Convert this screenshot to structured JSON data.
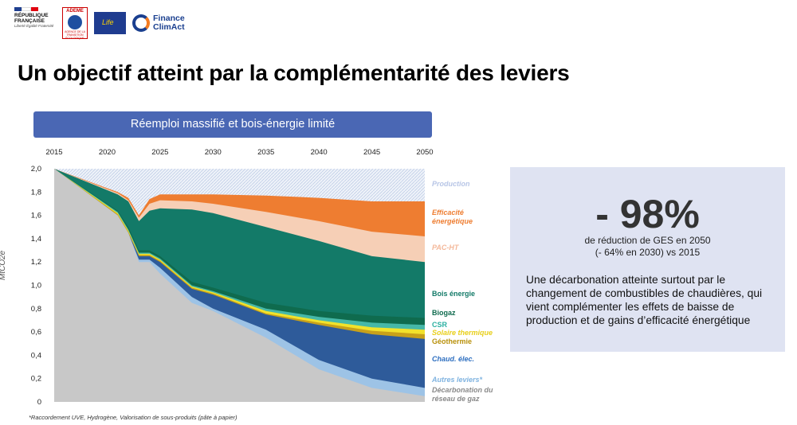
{
  "header": {
    "logos": {
      "rf": "RÉPUBLIQUE FRANÇAISE",
      "rf_motto": "Liberté Égalité Fraternité",
      "ademe": "ADEME",
      "ademe_sub": "AGENCE DE LA TRANSITION ÉCOLOGIQUE",
      "eu": "Life",
      "fca": "Finance ClimAct"
    },
    "title": "Un objectif atteint par la complémentarité des leviers"
  },
  "banner": "Réemploi massifié et bois-énergie limité",
  "footnote": "*Raccordement UVE, Hydrogène, Valorisation de sous-produits (pâte à papier)",
  "panel": {
    "headline": "- 98%",
    "subline1": "de réduction de GES en 2050",
    "subline2": "(- 64% en 2030) vs 2015",
    "description": "Une décarbonation atteinte surtout par le changement de combustibles de chaudières, qui vient complémenter les effets de baisse de production et de gains d’efficacité énergétique"
  },
  "chart_data": {
    "type": "area",
    "title": "Réemploi massifié et bois-énergie limité",
    "xlabel": "",
    "ylabel": "MtCO2e",
    "x_ticks": [
      "2015",
      "2020",
      "2025",
      "2030",
      "2035",
      "2040",
      "2045",
      "2050"
    ],
    "y_ticks": [
      "2,0",
      "1,8",
      "1,6",
      "1,4",
      "1,2",
      "1,0",
      "0,8",
      "0,6",
      "0,4",
      "0,2",
      "0"
    ],
    "xlim": [
      2015,
      2050
    ],
    "ylim": [
      0,
      2.0
    ],
    "x": [
      2015,
      2021,
      2022,
      2023,
      2024,
      2025,
      2028,
      2030,
      2035,
      2040,
      2045,
      2050
    ],
    "series": [
      {
        "name": "Décarbonation du réseau de gaz",
        "color": "#c8c8c8",
        "values": [
          2.0,
          1.6,
          1.45,
          1.2,
          1.2,
          1.1,
          0.85,
          0.78,
          0.55,
          0.28,
          0.12,
          0.05
        ]
      },
      {
        "name": "Autres leviers*",
        "color": "#9dc3e6",
        "values": [
          2.0,
          1.6,
          1.45,
          1.22,
          1.22,
          1.15,
          0.9,
          0.8,
          0.62,
          0.36,
          0.2,
          0.12
        ]
      },
      {
        "name": "Chaud. élec.",
        "color": "#2e5b9a",
        "values": [
          2.0,
          1.6,
          1.45,
          1.25,
          1.25,
          1.2,
          0.97,
          0.92,
          0.75,
          0.66,
          0.58,
          0.54
        ]
      },
      {
        "name": "Géothermie",
        "color": "#c8a11a",
        "values": [
          2.0,
          1.61,
          1.46,
          1.26,
          1.26,
          1.21,
          0.98,
          0.93,
          0.76,
          0.68,
          0.61,
          0.58
        ]
      },
      {
        "name": "Solaire thermique",
        "color": "#f2e22b",
        "values": [
          2.0,
          1.62,
          1.47,
          1.27,
          1.27,
          1.22,
          0.99,
          0.94,
          0.78,
          0.7,
          0.64,
          0.62
        ]
      },
      {
        "name": "CSR",
        "color": "#46b8a8",
        "values": [
          2.0,
          1.63,
          1.48,
          1.28,
          1.28,
          1.23,
          1.0,
          0.95,
          0.8,
          0.73,
          0.68,
          0.66
        ]
      },
      {
        "name": "Biogaz",
        "color": "#0f6b4e",
        "values": [
          2.0,
          1.64,
          1.5,
          1.3,
          1.3,
          1.25,
          1.03,
          0.98,
          0.85,
          0.78,
          0.74,
          0.72
        ]
      },
      {
        "name": "Bois énergie",
        "color": "#137a68",
        "values": [
          2.0,
          1.78,
          1.72,
          1.55,
          1.64,
          1.66,
          1.65,
          1.62,
          1.5,
          1.38,
          1.25,
          1.2
        ]
      },
      {
        "name": "PAC-HT",
        "color": "#f6cfb6",
        "values": [
          2.0,
          1.79,
          1.73,
          1.58,
          1.7,
          1.73,
          1.72,
          1.7,
          1.63,
          1.55,
          1.46,
          1.42
        ]
      },
      {
        "name": "Efficacité énergétique",
        "color": "#ee7d31",
        "values": [
          2.0,
          1.8,
          1.75,
          1.6,
          1.74,
          1.78,
          1.78,
          1.78,
          1.77,
          1.75,
          1.72,
          1.72
        ]
      },
      {
        "name": "Production",
        "color": "#e8edf6",
        "values": [
          2.0,
          2.0,
          2.0,
          2.0,
          2.0,
          2.0,
          2.0,
          2.0,
          2.0,
          2.0,
          2.0,
          2.0
        ]
      }
    ],
    "legend": [
      {
        "label": "Production",
        "color": "#b7c5e6",
        "italic": true
      },
      {
        "label": "Efficacité énergétique",
        "color": "#ee7d31",
        "italic": true
      },
      {
        "label": "PAC-HT",
        "color": "#f4b89a",
        "italic": true
      },
      {
        "label": "Bois énergie",
        "color": "#137a68",
        "italic": false
      },
      {
        "label": "Biogaz",
        "color": "#0f6b4e",
        "italic": false
      },
      {
        "label": "CSR",
        "color": "#2bb0a0",
        "italic": false
      },
      {
        "label": "Solaire thermique",
        "color": "#e8cf1a",
        "italic": true
      },
      {
        "label": "Géothermie",
        "color": "#b8900a",
        "italic": false
      },
      {
        "label": "Chaud. élec.",
        "color": "#2e6fc0",
        "italic": true
      },
      {
        "label": "Autres leviers*",
        "color": "#7fb3e0",
        "italic": true
      },
      {
        "label": "Décarbonation du réseau de gaz",
        "color": "#8a8a8a",
        "italic": true
      }
    ]
  }
}
